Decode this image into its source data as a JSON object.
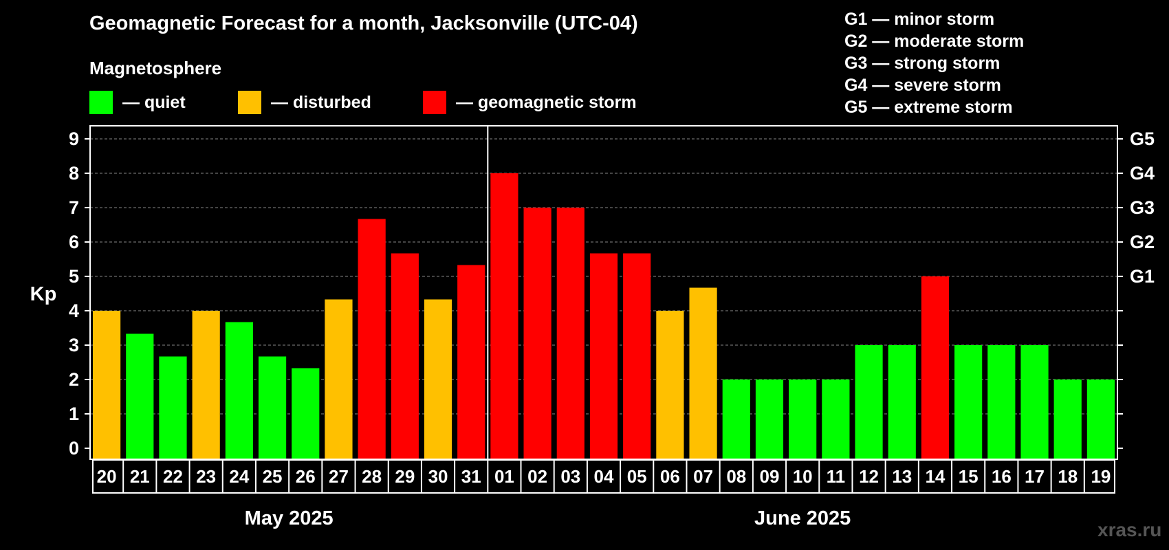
{
  "chart_data": {
    "type": "bar",
    "title": "Geomagnetic Forecast for a month, Jacksonville (UTC-04)",
    "ylabel": "Kp",
    "ylim": [
      0,
      9
    ],
    "yticks": [
      "0",
      "1",
      "2",
      "3",
      "4",
      "5",
      "6",
      "7",
      "8",
      "9"
    ],
    "right_axis_labels": [
      {
        "value": 5,
        "label": "G1"
      },
      {
        "value": 6,
        "label": "G2"
      },
      {
        "value": 7,
        "label": "G3"
      },
      {
        "value": 8,
        "label": "G4"
      },
      {
        "value": 9,
        "label": "G5"
      }
    ],
    "categories": [
      "20",
      "21",
      "22",
      "23",
      "24",
      "25",
      "26",
      "27",
      "28",
      "29",
      "30",
      "31",
      "01",
      "02",
      "03",
      "04",
      "05",
      "06",
      "07",
      "08",
      "09",
      "10",
      "11",
      "12",
      "13",
      "14",
      "15",
      "16",
      "17",
      "18",
      "19"
    ],
    "values": [
      4,
      3.33,
      2.67,
      4,
      3.67,
      2.67,
      2.33,
      4.33,
      6.67,
      5.67,
      4.33,
      5.33,
      8,
      7,
      7,
      5.67,
      5.67,
      4,
      4.67,
      2,
      2,
      2,
      2,
      3,
      3,
      5,
      3,
      3,
      3,
      2,
      2
    ],
    "levels": [
      "disturbed",
      "quiet",
      "quiet",
      "disturbed",
      "quiet",
      "quiet",
      "quiet",
      "disturbed",
      "storm",
      "storm",
      "disturbed",
      "storm",
      "storm",
      "storm",
      "storm",
      "storm",
      "storm",
      "disturbed",
      "disturbed",
      "quiet",
      "quiet",
      "quiet",
      "quiet",
      "quiet",
      "quiet",
      "storm",
      "quiet",
      "quiet",
      "quiet",
      "quiet",
      "quiet"
    ],
    "months": [
      {
        "label": "May 2025",
        "start": 0,
        "end": 11
      },
      {
        "label": "June 2025",
        "start": 12,
        "end": 30
      }
    ],
    "grid": true
  },
  "legend": {
    "heading": "Magnetosphere",
    "items": [
      {
        "key": "quiet",
        "label": "— quiet",
        "color": "#00ff00"
      },
      {
        "key": "disturbed",
        "label": "— disturbed",
        "color": "#ffc000"
      },
      {
        "key": "storm",
        "label": "— geomagnetic storm",
        "color": "#ff0000"
      }
    ]
  },
  "gscale": [
    "G1 — minor storm",
    "G2 — moderate storm",
    "G3 — strong storm",
    "G4 — severe storm",
    "G5 — extreme storm"
  ],
  "watermark": "xras.ru"
}
